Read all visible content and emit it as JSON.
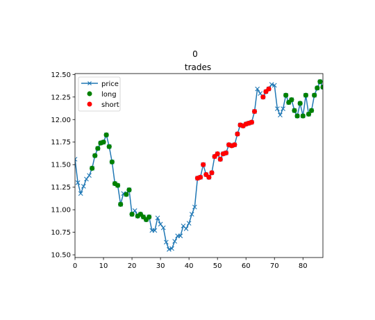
{
  "chart_data": {
    "type": "line",
    "suptitle": "0",
    "title": "trades",
    "xlabel": "",
    "ylabel": "",
    "xlim": [
      0,
      87
    ],
    "ylim": [
      10.47,
      12.51
    ],
    "x_ticks": [
      0,
      10,
      20,
      30,
      40,
      50,
      60,
      70,
      80
    ],
    "y_ticks": [
      10.5,
      10.75,
      11.0,
      11.25,
      11.5,
      11.75,
      12.0,
      12.25,
      12.5
    ],
    "grid": false,
    "legend": {
      "placement": "top-left",
      "entries": [
        {
          "name": "price",
          "marker": "x-line",
          "color": "#1f77b4"
        },
        {
          "name": "long",
          "marker": "circle",
          "color": "#008000"
        },
        {
          "name": "short",
          "marker": "circle",
          "color": "#ff0000"
        }
      ]
    },
    "series": [
      {
        "name": "price",
        "color": "#1f77b4",
        "x": [
          0,
          1,
          2,
          3,
          4,
          5,
          6,
          7,
          8,
          9,
          10,
          11,
          12,
          13,
          14,
          15,
          16,
          17,
          18,
          19,
          20,
          21,
          22,
          23,
          24,
          25,
          26,
          27,
          28,
          29,
          30,
          31,
          32,
          33,
          34,
          35,
          36,
          37,
          38,
          39,
          40,
          41,
          42,
          43,
          44,
          45,
          46,
          47,
          48,
          49,
          50,
          51,
          52,
          53,
          54,
          55,
          56,
          57,
          58,
          59,
          60,
          61,
          62,
          63,
          64,
          65,
          66,
          67,
          68,
          69,
          70,
          71,
          72,
          73,
          74,
          75,
          76,
          77,
          78,
          79,
          80,
          81,
          82,
          83,
          84,
          85,
          86,
          87
        ],
        "y": [
          11.56,
          11.3,
          11.18,
          11.26,
          11.34,
          11.38,
          11.46,
          11.6,
          11.68,
          11.74,
          11.75,
          11.83,
          11.7,
          11.53,
          11.29,
          11.27,
          11.06,
          11.18,
          11.17,
          11.22,
          10.95,
          10.99,
          10.93,
          10.95,
          10.92,
          10.89,
          10.92,
          10.77,
          10.77,
          10.91,
          10.84,
          10.8,
          10.64,
          10.56,
          10.57,
          10.65,
          10.71,
          10.71,
          10.82,
          10.79,
          10.85,
          10.95,
          11.03,
          11.35,
          11.36,
          11.5,
          11.39,
          11.36,
          11.41,
          11.59,
          11.62,
          11.56,
          11.62,
          11.63,
          11.72,
          11.71,
          11.72,
          11.84,
          11.94,
          11.93,
          11.95,
          11.96,
          11.97,
          12.09,
          12.34,
          12.29,
          12.25,
          12.31,
          12.34,
          12.39,
          12.38,
          12.12,
          12.05,
          12.12,
          12.27,
          12.19,
          12.22,
          12.1,
          12.04,
          12.18,
          12.04,
          12.27,
          12.06,
          12.1,
          12.27,
          12.35,
          12.42,
          12.36
        ]
      },
      {
        "name": "long",
        "color": "#008000",
        "x": [
          6,
          7,
          8,
          9,
          10,
          11,
          12,
          13,
          14,
          15,
          16,
          18,
          19,
          20,
          22,
          23,
          24,
          25,
          26,
          74,
          75,
          76,
          77,
          78,
          79,
          80,
          81,
          82,
          83,
          84,
          85,
          86,
          87
        ],
        "y": [
          11.46,
          11.6,
          11.68,
          11.74,
          11.75,
          11.83,
          11.7,
          11.53,
          11.29,
          11.27,
          11.06,
          11.17,
          11.22,
          10.95,
          10.93,
          10.95,
          10.92,
          10.89,
          10.92,
          12.27,
          12.19,
          12.22,
          12.1,
          12.04,
          12.18,
          12.04,
          12.27,
          12.06,
          12.1,
          12.27,
          12.35,
          12.42,
          12.36
        ]
      },
      {
        "name": "short",
        "color": "#ff0000",
        "x": [
          43,
          44,
          45,
          46,
          47,
          48,
          49,
          50,
          51,
          52,
          53,
          54,
          55,
          56,
          57,
          58,
          59,
          60,
          61,
          62,
          63,
          66,
          67,
          68
        ],
        "y": [
          11.35,
          11.36,
          11.5,
          11.39,
          11.36,
          11.41,
          11.59,
          11.62,
          11.56,
          11.62,
          11.63,
          11.72,
          11.71,
          11.72,
          11.84,
          11.94,
          11.93,
          11.95,
          11.96,
          11.97,
          12.09,
          12.25,
          12.31,
          12.34
        ]
      }
    ]
  }
}
